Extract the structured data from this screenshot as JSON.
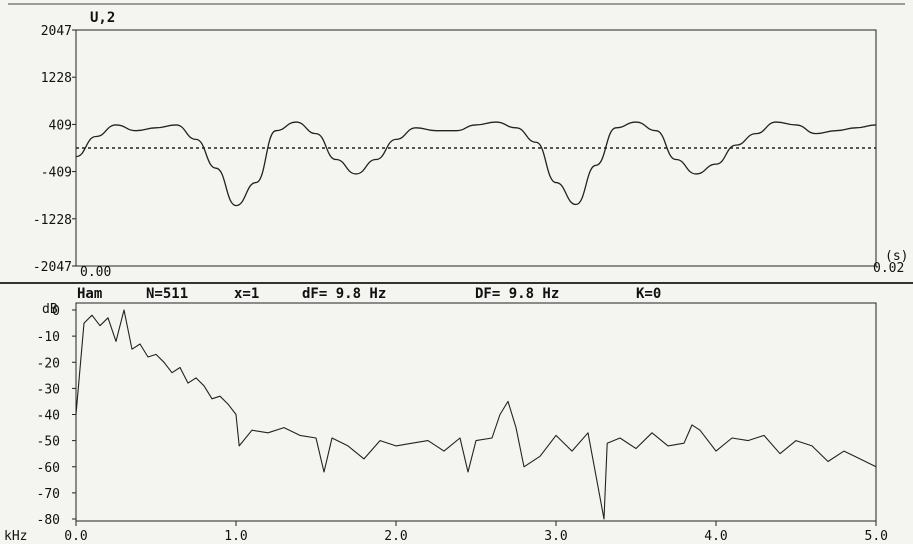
{
  "top_panel": {
    "title": "U,2",
    "x_start_label": "0.00",
    "x_end_label": "0.02",
    "x_unit_label": "(s)",
    "y_ticks": [
      "2047",
      "1228",
      "409",
      "-409",
      "-1228",
      "-2047"
    ]
  },
  "bottom_panel": {
    "header": {
      "window": "Ham",
      "n": "N=511",
      "x": "x=1",
      "df": "dF= 9.8 Hz",
      "DF": "DF= 9.8 Hz",
      "k": "K=0"
    },
    "y_unit_label": "dB",
    "x_unit_label": "kHz",
    "y_ticks": [
      "0",
      "-10",
      "-20",
      "-30",
      "-40",
      "-50",
      "-60",
      "-70",
      "-80"
    ],
    "x_ticks": [
      "0.0",
      "1.0",
      "2.0",
      "3.0",
      "4.0",
      "5.0"
    ]
  },
  "chart_data": [
    {
      "type": "line",
      "title": "U,2",
      "xlabel": "(s)",
      "xlim": [
        0,
        0.02
      ],
      "ylim": [
        -2047,
        2047
      ],
      "reference_line": 0,
      "x": [
        0.0,
        0.0005,
        0.001,
        0.0015,
        0.002,
        0.0025,
        0.003,
        0.0035,
        0.004,
        0.0045,
        0.005,
        0.0055,
        0.006,
        0.0065,
        0.007,
        0.0075,
        0.008,
        0.0085,
        0.009,
        0.0095,
        0.01,
        0.0105,
        0.011,
        0.0115,
        0.012,
        0.0125,
        0.013,
        0.0135,
        0.014,
        0.0145,
        0.015,
        0.0155,
        0.016,
        0.0165,
        0.017,
        0.0175,
        0.018,
        0.0185,
        0.019,
        0.0195,
        0.02
      ],
      "values": [
        -150,
        200,
        400,
        300,
        350,
        400,
        150,
        -350,
        -1000,
        -600,
        300,
        450,
        250,
        -200,
        -450,
        -200,
        150,
        350,
        300,
        300,
        400,
        450,
        350,
        100,
        -600,
        -980,
        -300,
        350,
        450,
        300,
        -200,
        -450,
        -280,
        50,
        250,
        450,
        400,
        250,
        300,
        350,
        400
      ]
    },
    {
      "type": "line",
      "ylabel": "dB",
      "xlabel": "kHz",
      "xlim": [
        0,
        5.0
      ],
      "ylim": [
        -80,
        0
      ],
      "x": [
        0.0,
        0.05,
        0.1,
        0.15,
        0.2,
        0.25,
        0.3,
        0.35,
        0.4,
        0.45,
        0.5,
        0.55,
        0.6,
        0.65,
        0.7,
        0.75,
        0.8,
        0.85,
        0.9,
        0.95,
        1.0,
        1.02,
        1.1,
        1.2,
        1.3,
        1.4,
        1.5,
        1.55,
        1.6,
        1.7,
        1.8,
        1.9,
        2.0,
        2.1,
        2.2,
        2.3,
        2.4,
        2.45,
        2.5,
        2.6,
        2.65,
        2.7,
        2.75,
        2.8,
        2.9,
        3.0,
        3.1,
        3.2,
        3.3,
        3.32,
        3.4,
        3.5,
        3.6,
        3.7,
        3.8,
        3.85,
        3.9,
        4.0,
        4.1,
        4.2,
        4.3,
        4.4,
        4.5,
        4.6,
        4.7,
        4.8,
        4.9,
        5.0
      ],
      "values": [
        -40,
        -5,
        -2,
        -6,
        -3,
        -12,
        0,
        -15,
        -13,
        -18,
        -17,
        -20,
        -24,
        -22,
        -28,
        -26,
        -29,
        -34,
        -33,
        -36,
        -40,
        -52,
        -46,
        -47,
        -45,
        -48,
        -49,
        -62,
        -49,
        -52,
        -57,
        -50,
        -52,
        -51,
        -50,
        -54,
        -49,
        -62,
        -50,
        -49,
        -40,
        -35,
        -45,
        -60,
        -56,
        -48,
        -54,
        -47,
        -80,
        -51,
        -49,
        -53,
        -47,
        -52,
        -51,
        -44,
        -46,
        -54,
        -49,
        -50,
        -48,
        -55,
        -50,
        -52,
        -58,
        -54,
        -57,
        -60
      ]
    }
  ]
}
